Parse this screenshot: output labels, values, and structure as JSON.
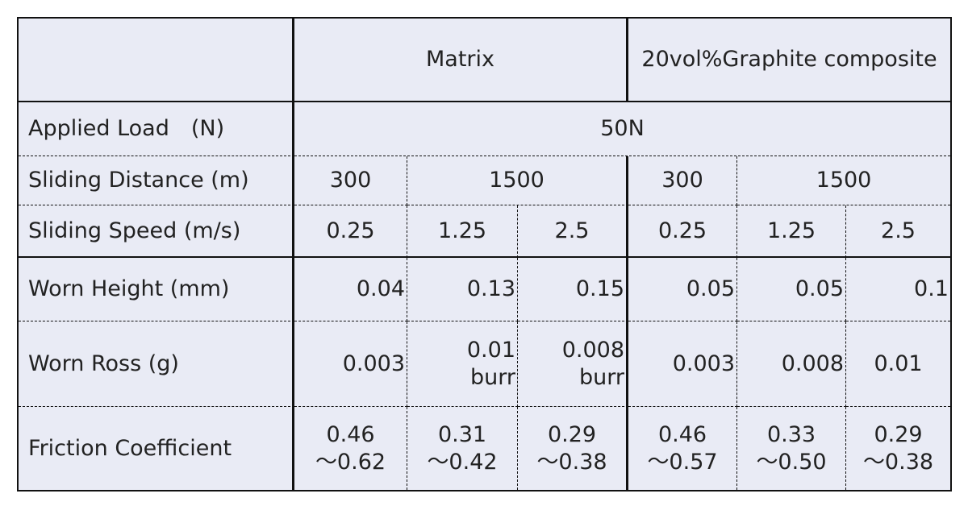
{
  "table": {
    "header": [
      "Matrix",
      "20vol%Graphite composite"
    ],
    "rows": [
      {
        "label": "Applied Load　(N)",
        "cells": [
          [
            "50N"
          ]
        ]
      },
      {
        "label": "Sliding Distance (m)",
        "cells": [
          [
            "300"
          ],
          [
            "1500"
          ],
          [
            "300"
          ],
          [
            "1500"
          ]
        ]
      },
      {
        "label": "Sliding Speed (m/s)",
        "cells": [
          [
            "0.25"
          ],
          [
            "1.25"
          ],
          [
            "2.5"
          ],
          [
            "0.25"
          ],
          [
            "1.25"
          ],
          [
            "2.5"
          ]
        ]
      },
      {
        "label": "Worn Height (mm)",
        "cells": [
          [
            "0.04"
          ],
          [
            "0.13"
          ],
          [
            "0.15"
          ],
          [
            "0.05"
          ],
          [
            "0.05"
          ],
          [
            "0.1"
          ]
        ]
      },
      {
        "label": "Worn Ross (g)",
        "cells": [
          [
            "0.003"
          ],
          [
            "0.01",
            "burr"
          ],
          [
            "0.008",
            "burr"
          ],
          [
            "0.003"
          ],
          [
            "0.008"
          ],
          [
            "0.01"
          ]
        ]
      },
      {
        "label": "Friction Coefficient",
        "cells": [
          [
            "0.46",
            "～0.62"
          ],
          [
            "0.31",
            "～0.42"
          ],
          [
            "0.29",
            "～0.38"
          ],
          [
            "0.46",
            "～0.57"
          ],
          [
            "0.33",
            "～0.50"
          ],
          [
            "0.29",
            "～0.38"
          ]
        ]
      }
    ]
  }
}
